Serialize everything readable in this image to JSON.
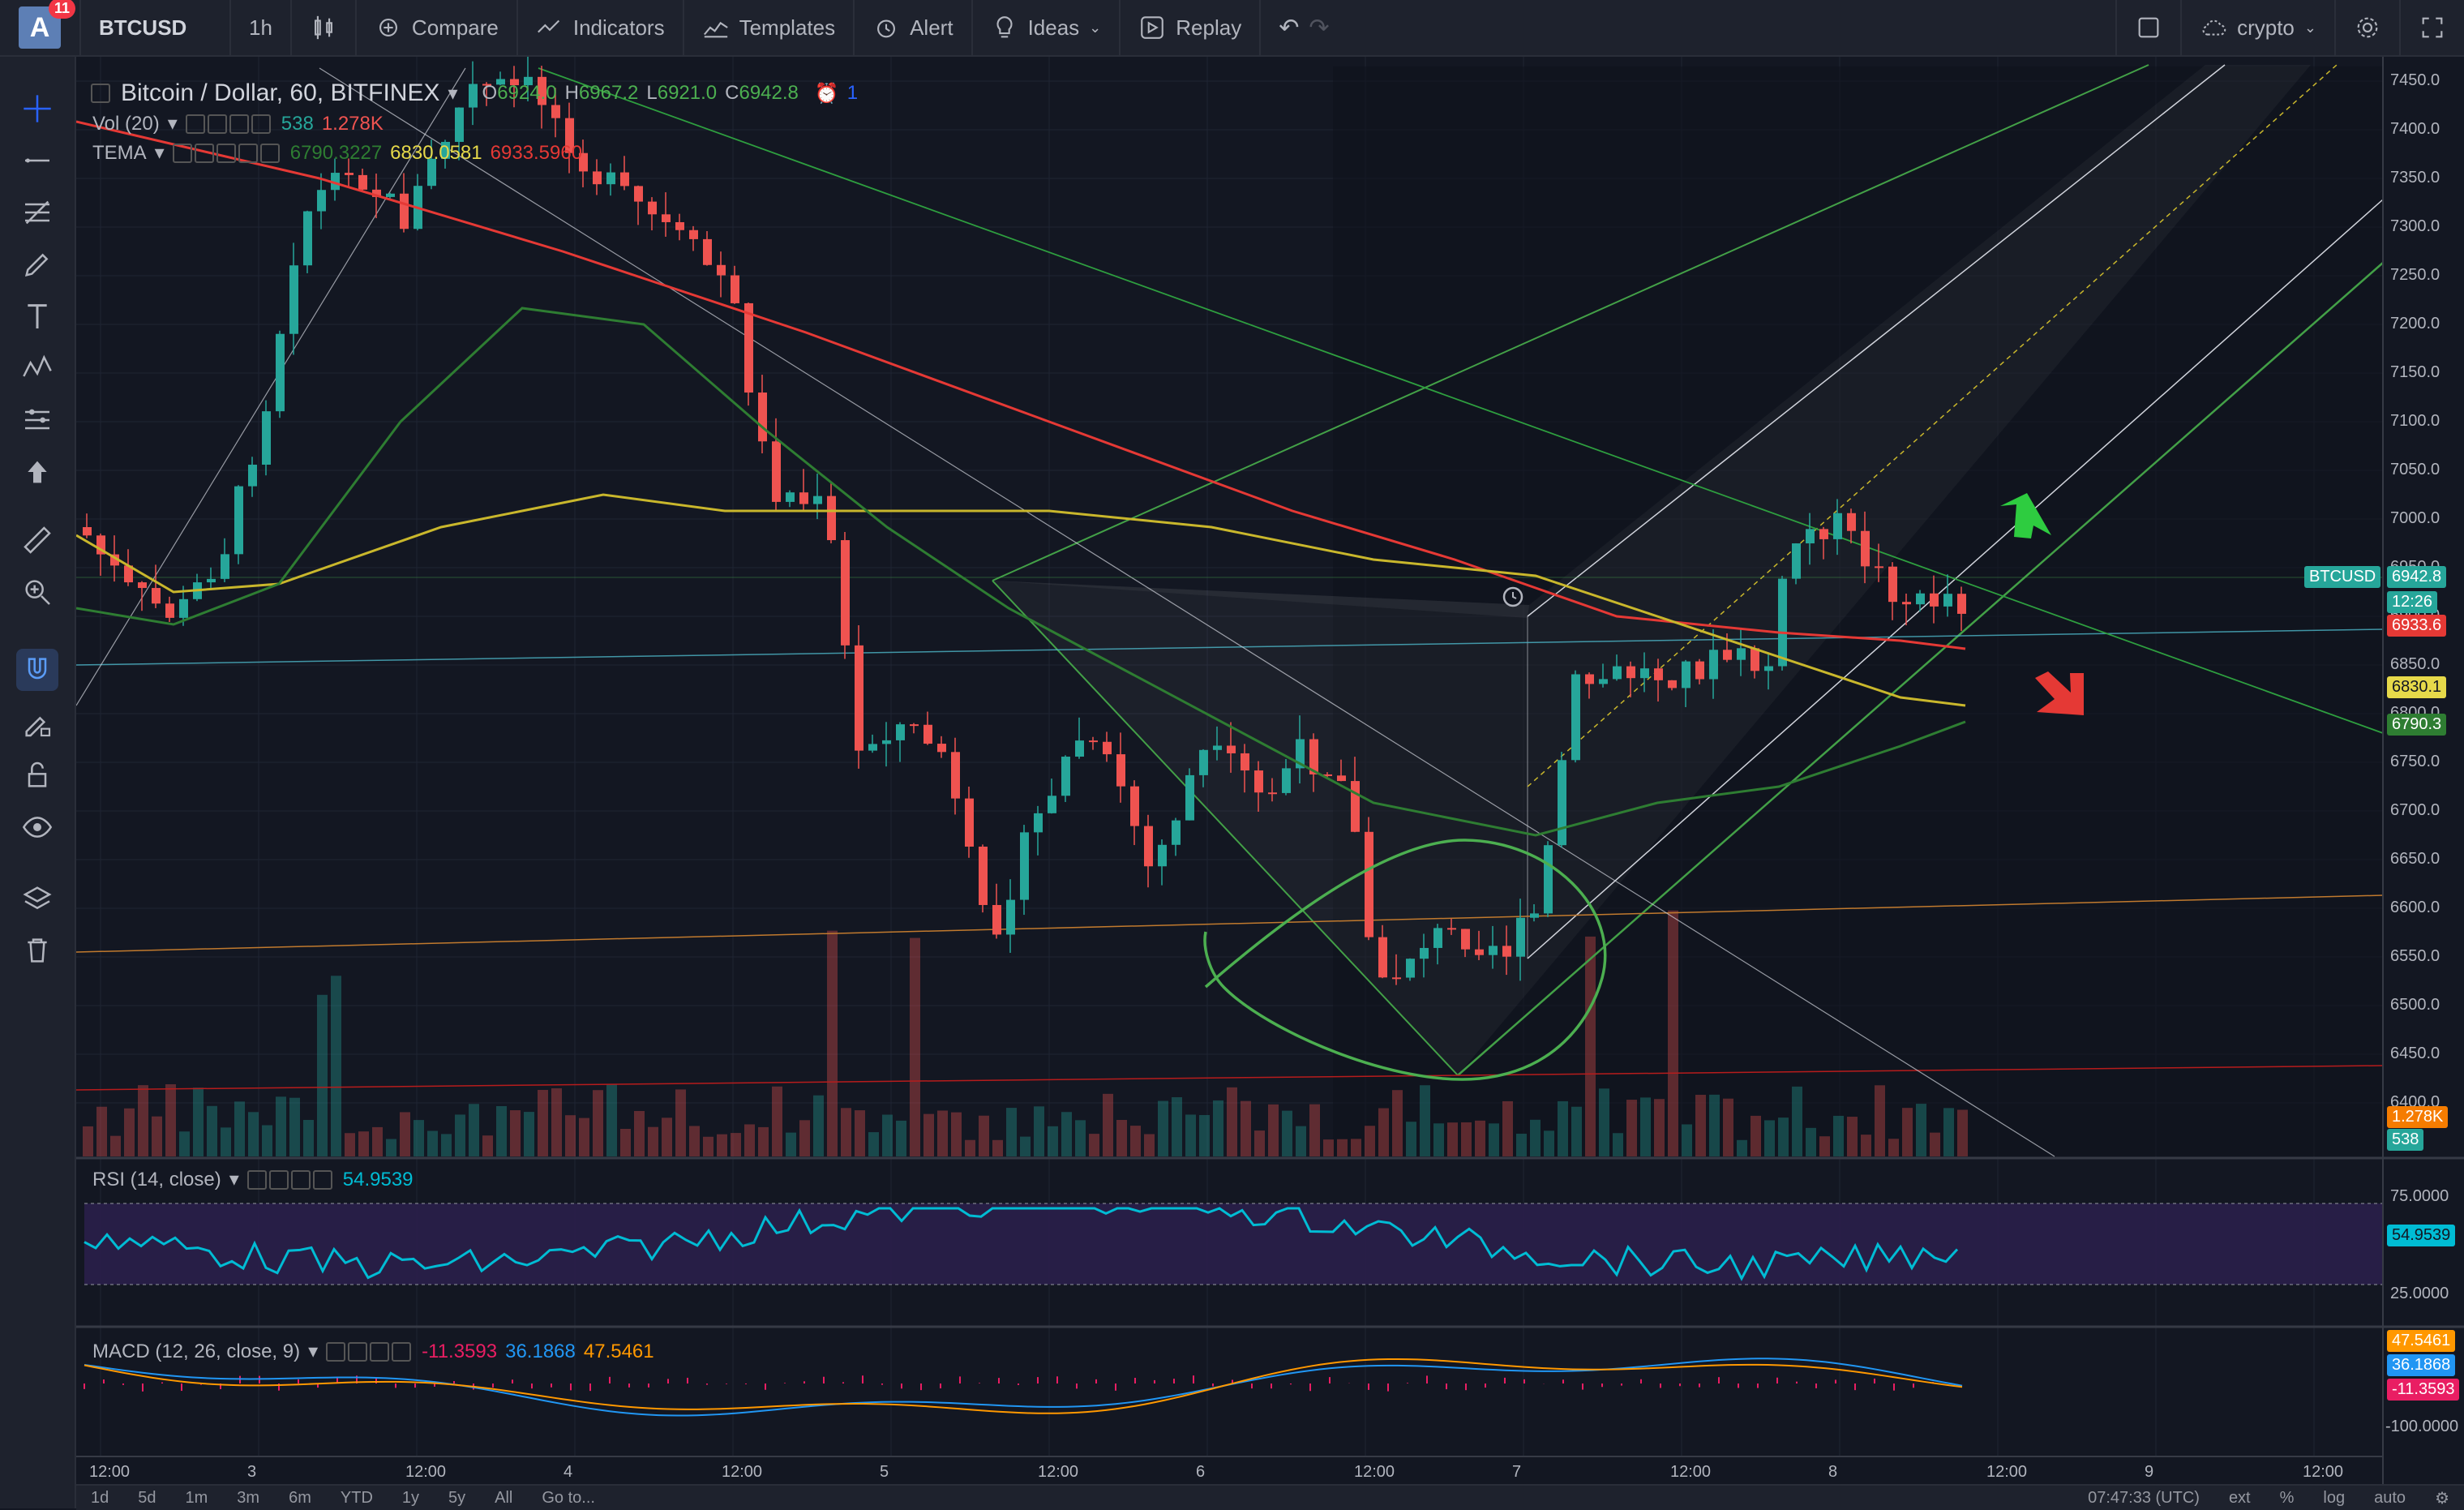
{
  "toolbar": {
    "notifications": "11",
    "avatar_letter": "A",
    "symbol": "BTCUSD",
    "interval": "1h",
    "compare": "Compare",
    "indicators": "Indicators",
    "templates": "Templates",
    "alert": "Alert",
    "ideas": "Ideas",
    "replay": "Replay",
    "layout_name": "crypto"
  },
  "legend": {
    "title": "Bitcoin / Dollar, 60, BITFINEX",
    "open": "6924.0",
    "high": "6967.2",
    "low": "6921.0",
    "close": "6942.8",
    "alerts_count": "1",
    "vol_label": "Vol (20)",
    "vol_a": "538",
    "vol_b": "1.278K",
    "tema_label": "TEMA",
    "tema_a": "6790.3227",
    "tema_b": "6830.0581",
    "tema_c": "6933.5960",
    "rsi_label": "RSI (14, close)",
    "rsi_value": "54.9539",
    "macd_label": "MACD (12, 26, close, 9)",
    "macd_hist": "-11.3593",
    "macd_line": "36.1868",
    "macd_signal": "47.5461"
  },
  "price_axis": [
    "7450.0",
    "7400.0",
    "7350.0",
    "7300.0",
    "7250.0",
    "7200.0",
    "7150.0",
    "7100.0",
    "7050.0",
    "7000.0",
    "6950.0",
    "6900.0",
    "6850.0",
    "6800.0",
    "6750.0",
    "6700.0",
    "6650.0",
    "6600.0",
    "6550.0",
    "6500.0",
    "6450.0",
    "6400.0"
  ],
  "price_tags": {
    "symbol": "BTCUSD",
    "last": "6942.8",
    "countdown": "12:26",
    "tema_red": "6933.6",
    "tema_yellow": "6830.1",
    "tema_green": "6790.3",
    "vol_b": "1.278K",
    "vol_a": "538"
  },
  "rsi_axis": [
    "75.0000",
    "25.0000"
  ],
  "rsi_tag": "54.9539",
  "macd_axis": [
    "-100.0000"
  ],
  "macd_tags": [
    "47.5461",
    "36.1868",
    "-11.3593"
  ],
  "time_axis": [
    "12:00",
    "3",
    "12:00",
    "4",
    "12:00",
    "5",
    "12:00",
    "6",
    "12:00",
    "7",
    "12:00",
    "8",
    "12:00",
    "9",
    "12:00"
  ],
  "bottom": {
    "ranges": [
      "1d",
      "5d",
      "1m",
      "3m",
      "6m",
      "YTD",
      "1y",
      "5y",
      "All"
    ],
    "goto": "Go to...",
    "clock": "07:47:33 (UTC)",
    "ext": "ext",
    "percent": "%",
    "log": "log",
    "auto": "auto"
  },
  "colors": {
    "up": "#26a69a",
    "down": "#ef5350",
    "tema_red": "#e53935",
    "tema_yellow": "#c9b72c",
    "tema_green": "#2e7d32",
    "rsi": "#00bcd4",
    "drawing": "#4caf50"
  }
}
